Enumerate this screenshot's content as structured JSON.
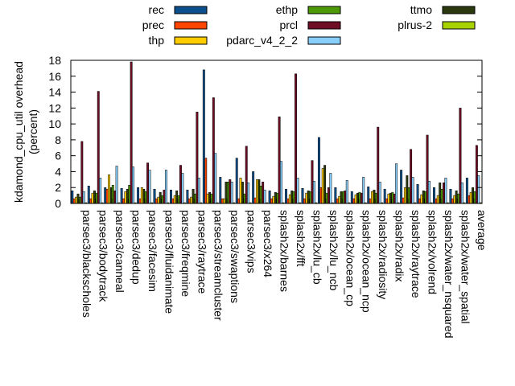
{
  "chart_data": {
    "type": "bar",
    "ylabel_line1": "kdamond_cpu_util overhead",
    "ylabel_line2": "(percent)",
    "ylim": [
      0,
      18
    ],
    "yticks": [
      0,
      2,
      4,
      6,
      8,
      10,
      12,
      14,
      16,
      18
    ],
    "grid": false,
    "legend_position": "top",
    "categories": [
      "parsec3/blackscholes",
      "parsec3/bodytrack",
      "parsec3/canneal",
      "parsec3/dedup",
      "parsec3/facesim",
      "parsec3/fluidanimate",
      "parsec3/freqmine",
      "parsec3/raytrace",
      "parsec3/streamcluster",
      "parsec3/swaptions",
      "parsec3/vips",
      "parsec3/x264",
      "splash2x/barnes",
      "splash2x/fft",
      "splash2x/lu_cb",
      "splash2x/lu_ncb",
      "splash2x/ocean_cp",
      "splash2x/ocean_ncp",
      "splash2x/radiosity",
      "splash2x/radix",
      "splash2x/raytrace",
      "splash2x/volrend",
      "splash2x/water_nsquared",
      "splash2x/water_spatial",
      "average"
    ],
    "series": [
      {
        "name": "rec",
        "color": "#0b4f8c",
        "values": [
          1.6,
          2.2,
          2.0,
          1.9,
          2.0,
          1.8,
          1.7,
          1.7,
          16.8,
          3.3,
          5.7,
          4.0,
          1.6,
          1.8,
          1.9,
          8.3,
          2.0,
          1.5,
          2.1,
          1.8,
          4.2,
          2.4,
          2.0,
          1.8,
          3.2
        ]
      },
      {
        "name": "prec",
        "color": "#ff4500",
        "values": [
          0.6,
          0.6,
          1.8,
          0.6,
          0.6,
          0.6,
          0.6,
          0.6,
          5.7,
          0.6,
          0.6,
          0.7,
          0.6,
          0.6,
          0.6,
          2.0,
          0.6,
          0.6,
          0.6,
          0.6,
          0.7,
          0.6,
          0.6,
          0.6,
          1.0
        ]
      },
      {
        "name": "thp",
        "color": "#ffcc00",
        "values": [
          0.8,
          1.3,
          3.6,
          1.5,
          2.0,
          0.8,
          1.0,
          0.8,
          1.2,
          0.6,
          3.2,
          3.0,
          0.9,
          1.1,
          1.3,
          4.4,
          0.9,
          1.1,
          1.5,
          1.2,
          2.0,
          1.1,
          1.0,
          1.0,
          1.4
        ]
      },
      {
        "name": "ttmo",
        "color": "#2b3a0e",
        "values": [
          1.2,
          1.6,
          2.0,
          1.8,
          1.8,
          1.4,
          1.6,
          1.8,
          1.4,
          2.7,
          2.7,
          3.0,
          1.4,
          1.6,
          1.6,
          4.8,
          1.5,
          1.3,
          1.7,
          1.3,
          3.5,
          1.6,
          2.6,
          1.6,
          2.0
        ]
      },
      {
        "name": "ethp",
        "color": "#4e9a06",
        "values": [
          0.8,
          1.3,
          2.3,
          2.3,
          1.5,
          1.0,
          1.0,
          1.2,
          1.2,
          2.7,
          1.2,
          2.2,
          1.3,
          1.5,
          1.5,
          1.3,
          1.5,
          1.4,
          1.3,
          1.4,
          2.0,
          1.5,
          1.8,
          1.2,
          1.5
        ]
      },
      {
        "name": "prcl",
        "color": "#6e0d23",
        "values": [
          7.8,
          14.1,
          1.6,
          17.8,
          5.1,
          1.7,
          4.8,
          11.5,
          13.3,
          3.0,
          7.2,
          2.7,
          10.9,
          16.3,
          5.4,
          2.0,
          1.6,
          1.3,
          9.6,
          1.2,
          6.8,
          8.6,
          2.6,
          12.0,
          7.3
        ]
      },
      {
        "name": "pdarc_v4_2_2",
        "color": "#87cefa",
        "values": [
          1.5,
          3.2,
          4.7,
          4.6,
          4.2,
          4.2,
          3.8,
          3.2,
          6.3,
          2.7,
          2.6,
          1.7,
          5.3,
          3.2,
          2.8,
          3.8,
          2.9,
          3.3,
          2.7,
          5.0,
          3.3,
          2.8,
          3.2,
          2.6,
          3.5
        ]
      },
      {
        "name": "plrus-2",
        "color": "#a8d300",
        "values": [
          0.1,
          0.1,
          0.1,
          0.1,
          0.1,
          0.1,
          0.1,
          0.1,
          0.1,
          0.1,
          0.1,
          0.1,
          0.1,
          0.1,
          0.1,
          0.1,
          0.1,
          0.1,
          0.1,
          0.1,
          0.1,
          0.1,
          0.1,
          0.1,
          0.1
        ]
      }
    ]
  },
  "legend_order": [
    "rec",
    "prec",
    "thp",
    "ethp",
    "prcl",
    "pdarc_v4_2_2",
    "ttmo",
    "plrus-2"
  ]
}
